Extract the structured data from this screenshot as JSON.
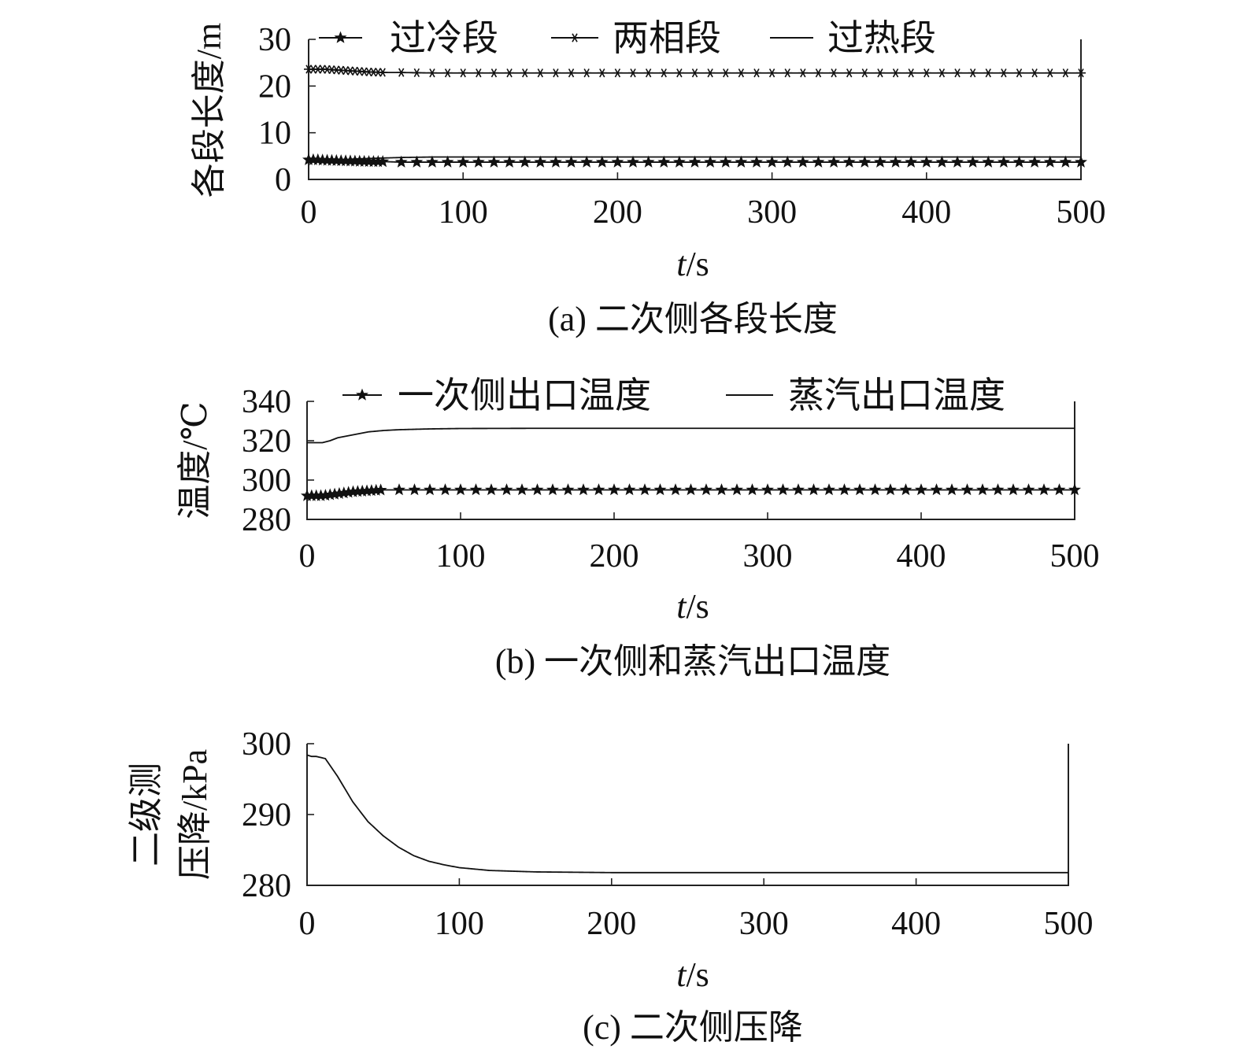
{
  "chart_data": [
    {
      "type": "line",
      "id": "a",
      "caption": "(a) 二次侧各段长度",
      "xlabel_italic": "t",
      "xlabel_unit": "/s",
      "ylabel": "各段长度/m",
      "xlim": [
        0,
        500
      ],
      "ylim": [
        0,
        30
      ],
      "xticks": [
        0,
        100,
        200,
        300,
        400,
        500
      ],
      "yticks": [
        0,
        10,
        20,
        30
      ],
      "legend_position": "top",
      "series": [
        {
          "name": "过冷段",
          "marker": "star",
          "x": [
            0,
            5,
            10,
            20,
            30,
            40,
            50,
            60,
            80,
            100,
            150,
            200,
            250,
            300,
            350,
            400,
            450,
            500
          ],
          "y": [
            4.2,
            4.2,
            4.1,
            4.0,
            3.9,
            3.8,
            3.8,
            3.7,
            3.7,
            3.7,
            3.7,
            3.7,
            3.7,
            3.7,
            3.7,
            3.7,
            3.7,
            3.7
          ]
        },
        {
          "name": "两相段",
          "marker": "asterisk",
          "x": [
            0,
            5,
            10,
            20,
            30,
            40,
            50,
            60,
            80,
            100,
            150,
            200,
            250,
            300,
            350,
            400,
            450,
            500
          ],
          "y": [
            23.6,
            23.6,
            23.6,
            23.4,
            23.2,
            23.0,
            22.9,
            22.9,
            22.8,
            22.8,
            22.8,
            22.8,
            22.8,
            22.8,
            22.8,
            22.8,
            22.8,
            22.8
          ]
        },
        {
          "name": "过热段",
          "marker": "none",
          "x": [
            0,
            5,
            10,
            20,
            30,
            40,
            50,
            60,
            80,
            100,
            150,
            200,
            250,
            300,
            350,
            400,
            450,
            500
          ],
          "y": [
            4.0,
            4.0,
            4.0,
            4.2,
            4.4,
            4.5,
            4.6,
            4.7,
            4.8,
            4.8,
            4.8,
            4.8,
            4.8,
            4.8,
            4.8,
            4.8,
            4.8,
            4.8
          ]
        }
      ]
    },
    {
      "type": "line",
      "id": "b",
      "caption": "(b) 一次侧和蒸汽出口温度",
      "xlabel_italic": "t",
      "xlabel_unit": "/s",
      "ylabel": "温度/℃",
      "xlim": [
        0,
        500
      ],
      "ylim": [
        280,
        340
      ],
      "xticks": [
        0,
        100,
        200,
        300,
        400,
        500
      ],
      "yticks": [
        280,
        300,
        320,
        340
      ],
      "legend_position": "top",
      "series": [
        {
          "name": "一次侧出口温度",
          "marker": "star",
          "x": [
            0,
            5,
            10,
            15,
            20,
            30,
            40,
            50,
            60,
            80,
            100,
            150,
            200,
            250,
            300,
            350,
            400,
            450,
            500
          ],
          "y": [
            292,
            292,
            292,
            292.5,
            293,
            294,
            294.5,
            295,
            295,
            295,
            295,
            295,
            295,
            295,
            295,
            295,
            295,
            295,
            295
          ]
        },
        {
          "name": "蒸汽出口温度",
          "marker": "none",
          "x": [
            0,
            5,
            10,
            15,
            20,
            30,
            40,
            50,
            60,
            80,
            100,
            150,
            200,
            250,
            300,
            350,
            400,
            450,
            500
          ],
          "y": [
            319,
            319,
            319,
            320,
            321.5,
            323,
            324.5,
            325.2,
            325.6,
            326,
            326.2,
            326.3,
            326.3,
            326.3,
            326.3,
            326.3,
            326.3,
            326.3,
            326.3
          ]
        }
      ]
    },
    {
      "type": "line",
      "id": "c",
      "caption": "(c) 二次侧压降",
      "xlabel_italic": "t",
      "xlabel_unit": "/s",
      "ylabel_lines": [
        "二级测",
        "压降/kPa"
      ],
      "xlim": [
        0,
        500
      ],
      "ylim": [
        280,
        300
      ],
      "xticks": [
        0,
        100,
        200,
        300,
        400,
        500
      ],
      "yticks": [
        280,
        290,
        300
      ],
      "legend_position": "none",
      "series": [
        {
          "marker": "none",
          "x": [
            0,
            3,
            6,
            10,
            12,
            20,
            30,
            40,
            50,
            60,
            70,
            80,
            90,
            100,
            120,
            150,
            200,
            250,
            300,
            350,
            400,
            450,
            500
          ],
          "y": [
            298.4,
            298.2,
            298.2,
            298.0,
            297.9,
            295.4,
            291.8,
            289.0,
            287.0,
            285.4,
            284.2,
            283.4,
            282.9,
            282.5,
            282.1,
            281.9,
            281.8,
            281.8,
            281.8,
            281.8,
            281.8,
            281.8,
            281.8
          ]
        }
      ]
    }
  ]
}
